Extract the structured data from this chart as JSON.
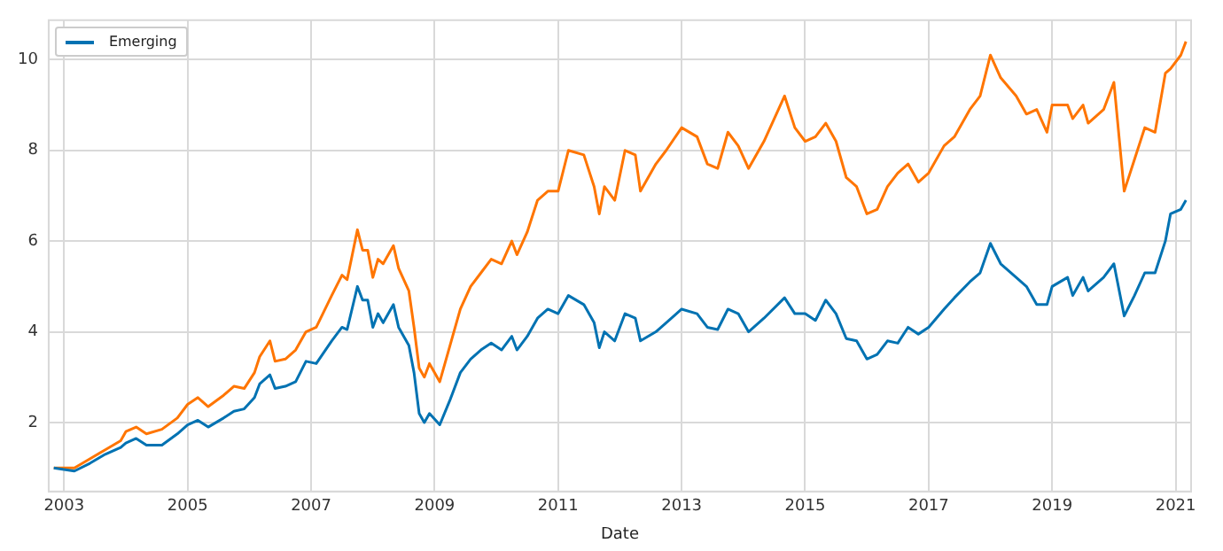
{
  "chart_data": {
    "type": "line",
    "xlabel": "Date",
    "x": [
      "2002-11",
      "2003-03",
      "2003-06",
      "2003-09",
      "2003-12",
      "2004-01",
      "2004-03",
      "2004-05",
      "2004-08",
      "2004-11",
      "2005-01",
      "2005-03",
      "2005-05",
      "2005-08",
      "2005-10",
      "2005-12",
      "2006-02",
      "2006-03",
      "2006-05",
      "2006-06",
      "2006-08",
      "2006-10",
      "2006-12",
      "2007-02",
      "2007-05",
      "2007-07",
      "2007-08",
      "2007-10",
      "2007-11",
      "2007-12",
      "2008-01",
      "2008-02",
      "2008-03",
      "2008-05",
      "2008-06",
      "2008-08",
      "2008-09",
      "2008-10",
      "2008-11",
      "2008-12",
      "2009-02",
      "2009-04",
      "2009-06",
      "2009-08",
      "2009-10",
      "2009-12",
      "2010-02",
      "2010-04",
      "2010-05",
      "2010-07",
      "2010-09",
      "2010-11",
      "2011-01",
      "2011-03",
      "2011-06",
      "2011-08",
      "2011-09",
      "2011-10",
      "2011-12",
      "2012-02",
      "2012-04",
      "2012-05",
      "2012-08",
      "2012-10",
      "2013-01",
      "2013-04",
      "2013-06",
      "2013-08",
      "2013-10",
      "2013-12",
      "2014-02",
      "2014-05",
      "2014-09",
      "2014-11",
      "2015-01",
      "2015-03",
      "2015-05",
      "2015-07",
      "2015-09",
      "2015-11",
      "2016-01",
      "2016-03",
      "2016-05",
      "2016-07",
      "2016-09",
      "2016-11",
      "2017-01",
      "2017-04",
      "2017-06",
      "2017-09",
      "2017-11",
      "2018-01",
      "2018-03",
      "2018-06",
      "2018-08",
      "2018-10",
      "2018-12",
      "2019-01",
      "2019-04",
      "2019-05",
      "2019-07",
      "2019-08",
      "2019-11",
      "2020-01",
      "2020-03",
      "2020-05",
      "2020-07",
      "2020-09",
      "2020-11",
      "2020-12",
      "2021-02",
      "2021-03"
    ],
    "series": [
      {
        "name": "Emerging",
        "color": "#0072b2",
        "values": [
          1.0,
          0.93,
          1.1,
          1.3,
          1.45,
          1.55,
          1.65,
          1.5,
          1.5,
          1.75,
          1.95,
          2.05,
          1.9,
          2.1,
          2.25,
          2.3,
          2.55,
          2.85,
          3.05,
          2.75,
          2.8,
          2.9,
          3.35,
          3.3,
          3.8,
          4.1,
          4.05,
          5.0,
          4.7,
          4.7,
          4.1,
          4.4,
          4.2,
          4.6,
          4.1,
          3.7,
          3.1,
          2.2,
          2.0,
          2.2,
          1.95,
          2.5,
          3.1,
          3.4,
          3.6,
          3.75,
          3.6,
          3.9,
          3.6,
          3.9,
          4.3,
          4.5,
          4.4,
          4.8,
          4.6,
          4.2,
          3.65,
          4.0,
          3.8,
          4.4,
          4.3,
          3.8,
          4.0,
          4.2,
          4.5,
          4.4,
          4.1,
          4.05,
          4.5,
          4.4,
          4.0,
          4.3,
          4.75,
          4.4,
          4.4,
          4.25,
          4.7,
          4.4,
          3.85,
          3.8,
          3.4,
          3.5,
          3.8,
          3.75,
          4.1,
          3.95,
          4.1,
          4.5,
          4.75,
          5.1,
          5.3,
          5.95,
          5.5,
          5.2,
          5.0,
          4.6,
          4.6,
          5.0,
          5.2,
          4.8,
          5.2,
          4.9,
          5.2,
          5.5,
          4.35,
          4.8,
          5.3,
          5.3,
          6.0,
          6.6,
          6.7,
          6.9
        ]
      },
      {
        "color": "#ff7500",
        "values": [
          1.0,
          1.0,
          1.2,
          1.4,
          1.6,
          1.8,
          1.9,
          1.75,
          1.85,
          2.1,
          2.4,
          2.55,
          2.35,
          2.6,
          2.8,
          2.75,
          3.1,
          3.45,
          3.8,
          3.35,
          3.4,
          3.6,
          4.0,
          4.1,
          4.8,
          5.25,
          5.15,
          6.25,
          5.8,
          5.8,
          5.2,
          5.6,
          5.5,
          5.9,
          5.4,
          4.9,
          4.1,
          3.2,
          3.0,
          3.3,
          2.9,
          3.7,
          4.5,
          5.0,
          5.3,
          5.6,
          5.5,
          6.0,
          5.7,
          6.2,
          6.9,
          7.1,
          7.1,
          8.0,
          7.9,
          7.2,
          6.6,
          7.2,
          6.9,
          8.0,
          7.9,
          7.1,
          7.7,
          8.0,
          8.5,
          8.3,
          7.7,
          7.6,
          8.4,
          8.1,
          7.6,
          8.2,
          9.2,
          8.5,
          8.2,
          8.3,
          8.6,
          8.2,
          7.4,
          7.2,
          6.6,
          6.7,
          7.2,
          7.5,
          7.7,
          7.3,
          7.5,
          8.1,
          8.3,
          8.9,
          9.2,
          10.1,
          9.6,
          9.2,
          8.8,
          8.9,
          8.4,
          9.0,
          9.0,
          8.7,
          9.0,
          8.6,
          8.9,
          9.5,
          7.1,
          7.8,
          8.5,
          8.4,
          9.7,
          9.8,
          10.1,
          10.4
        ]
      }
    ],
    "xlim": [
      "2002-10",
      "2021-04"
    ],
    "xticks": [
      "2003",
      "2005",
      "2007",
      "2009",
      "2011",
      "2013",
      "2015",
      "2017",
      "2019",
      "2021"
    ],
    "ylim": [
      0.48,
      10.87
    ],
    "yticks": [
      2,
      4,
      6,
      8,
      10
    ],
    "grid": true,
    "legend": "top left",
    "marker": "none",
    "line_style": "solid"
  }
}
